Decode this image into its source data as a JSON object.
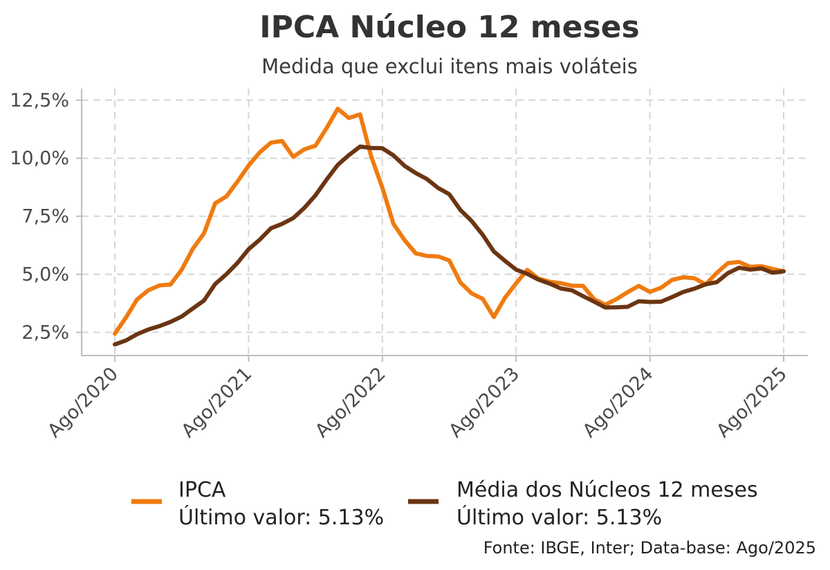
{
  "chart_data": {
    "type": "line",
    "title": "IPCA Núcleo 12 meses",
    "subtitle": "Medida que exclui itens mais voláteis",
    "source": "Fonte: IBGE, Inter; Data-base: Ago/2025",
    "ylim": [
      1.5,
      13.0
    ],
    "y_ticks": [
      2.5,
      5.0,
      7.5,
      10.0,
      12.5
    ],
    "y_tick_labels": [
      "2,5%",
      "5,0%",
      "7,5%",
      "10,0%",
      "12,5%"
    ],
    "x_ticks": [
      "Ago/2020",
      "Ago/2021",
      "Ago/2022",
      "Ago/2023",
      "Ago/2024",
      "Ago/2025"
    ],
    "grid": true,
    "legend_position": "bottom",
    "x": [
      "Ago/2020",
      "Set/2020",
      "Out/2020",
      "Nov/2020",
      "Dez/2020",
      "Jan/2021",
      "Fev/2021",
      "Mar/2021",
      "Abr/2021",
      "Mai/2021",
      "Jun/2021",
      "Jul/2021",
      "Ago/2021",
      "Set/2021",
      "Out/2021",
      "Nov/2021",
      "Dez/2021",
      "Jan/2022",
      "Fev/2022",
      "Mar/2022",
      "Abr/2022",
      "Mai/2022",
      "Jun/2022",
      "Jul/2022",
      "Ago/2022",
      "Set/2022",
      "Out/2022",
      "Nov/2022",
      "Dez/2022",
      "Jan/2023",
      "Fev/2023",
      "Mar/2023",
      "Abr/2023",
      "Mai/2023",
      "Jun/2023",
      "Jul/2023",
      "Ago/2023",
      "Set/2023",
      "Out/2023",
      "Nov/2023",
      "Dez/2023",
      "Jan/2024",
      "Fev/2024",
      "Mar/2024",
      "Abr/2024",
      "Mai/2024",
      "Jun/2024",
      "Jul/2024",
      "Ago/2024",
      "Set/2024",
      "Out/2024",
      "Nov/2024",
      "Dez/2024",
      "Jan/2025",
      "Fev/2025",
      "Mar/2025",
      "Abr/2025",
      "Mai/2025",
      "Jun/2025",
      "Jul/2025",
      "Ago/2025"
    ],
    "series": [
      {
        "name": "IPCA",
        "legend_label": "IPCA",
        "last_value_label": "Último valor: 5.13%",
        "color": "#ef7b10",
        "values": [
          2.44,
          3.14,
          3.92,
          4.31,
          4.52,
          4.56,
          5.2,
          6.1,
          6.76,
          8.06,
          8.35,
          8.99,
          9.68,
          10.25,
          10.67,
          10.74,
          10.06,
          10.38,
          10.54,
          11.3,
          12.13,
          11.73,
          11.89,
          10.07,
          8.73,
          7.17,
          6.47,
          5.9,
          5.79,
          5.77,
          5.6,
          4.65,
          4.18,
          3.94,
          3.16,
          3.99,
          4.61,
          5.19,
          4.82,
          4.68,
          4.62,
          4.51,
          4.5,
          3.93,
          3.69,
          3.93,
          4.23,
          4.5,
          4.24,
          4.42,
          4.76,
          4.87,
          4.83,
          4.56,
          5.06,
          5.48,
          5.53,
          5.32,
          5.35,
          5.23,
          5.13
        ]
      },
      {
        "name": "Média dos Núcleos 12 meses",
        "legend_label": "Média dos Núcleos 12 meses",
        "last_value_label": "Último valor: 5.13%",
        "color": "#6b3512",
        "values": [
          1.98,
          2.15,
          2.42,
          2.62,
          2.77,
          2.95,
          3.18,
          3.53,
          3.87,
          4.58,
          5.0,
          5.49,
          6.08,
          6.49,
          6.98,
          7.17,
          7.42,
          7.86,
          8.4,
          9.08,
          9.71,
          10.13,
          10.5,
          10.44,
          10.43,
          10.12,
          9.67,
          9.36,
          9.1,
          8.72,
          8.45,
          7.77,
          7.3,
          6.7,
          5.98,
          5.58,
          5.2,
          5.02,
          4.77,
          4.6,
          4.39,
          4.31,
          4.06,
          3.82,
          3.57,
          3.58,
          3.6,
          3.84,
          3.81,
          3.82,
          4.02,
          4.24,
          4.38,
          4.57,
          4.66,
          5.05,
          5.28,
          5.2,
          5.25,
          5.07,
          5.13
        ]
      }
    ]
  }
}
